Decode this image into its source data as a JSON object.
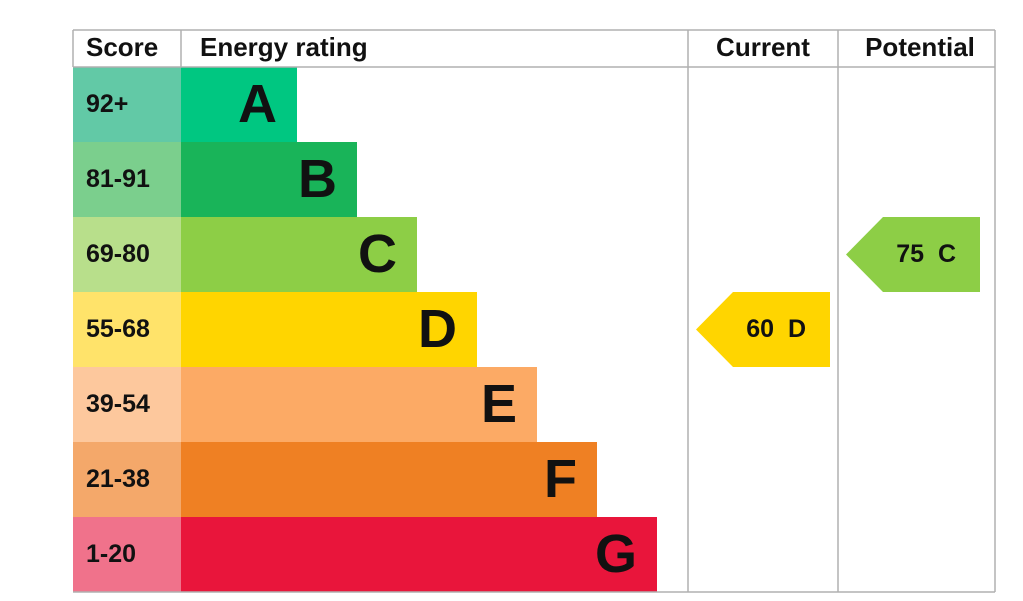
{
  "header": {
    "score": "Score",
    "energy_rating": "Energy rating",
    "current": "Current",
    "potential": "Potential"
  },
  "bands": [
    {
      "score": "92+",
      "letter": "A",
      "color": "#00c781",
      "score_color": "#62c9a6"
    },
    {
      "score": "81-91",
      "letter": "B",
      "color": "#19b459",
      "score_color": "#7bcf8d"
    },
    {
      "score": "69-80",
      "letter": "C",
      "color": "#8dce46",
      "score_color": "#b8df8b"
    },
    {
      "score": "55-68",
      "letter": "D",
      "color": "#ffd500",
      "score_color": "#ffe36a"
    },
    {
      "score": "39-54",
      "letter": "E",
      "color": "#fcaa65",
      "score_color": "#fdc89d"
    },
    {
      "score": "21-38",
      "letter": "F",
      "color": "#ef8023",
      "score_color": "#f4a86a"
    },
    {
      "score": "1-20",
      "letter": "G",
      "color": "#e9153b",
      "score_color": "#f0728b"
    }
  ],
  "current": {
    "score": 60,
    "band": "D"
  },
  "potential": {
    "score": 75,
    "band": "C"
  }
}
